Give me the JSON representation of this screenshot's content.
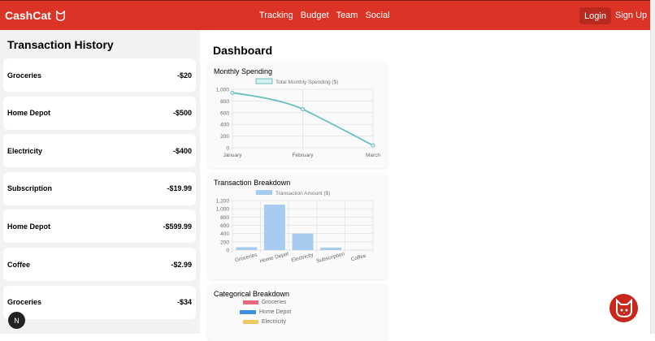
{
  "nav": {
    "brand": "CashCat",
    "links": [
      "Tracking",
      "Budget",
      "Team",
      "Social"
    ],
    "login": "Login",
    "signup": "Sign Up"
  },
  "history": {
    "title": "Transaction History",
    "items": [
      {
        "name": "Groceries",
        "amount": "-$20"
      },
      {
        "name": "Home Depot",
        "amount": "-$500"
      },
      {
        "name": "Electricity",
        "amount": "-$400"
      },
      {
        "name": "Subscription",
        "amount": "-$19.99"
      },
      {
        "name": "Home Depot",
        "amount": "-$599.99"
      },
      {
        "name": "Coffee",
        "amount": "-$2.99"
      },
      {
        "name": "Groceries",
        "amount": "-$34"
      }
    ]
  },
  "dashboard": {
    "title": "Dashboard",
    "monthly_title": "Monthly Spending",
    "breakdown_title": "Transaction Breakdown",
    "categorical_title": "Categorical Breakdown",
    "categorical_legend": [
      {
        "label": "Groceries",
        "color": "#e8677d"
      },
      {
        "label": "Home Depot",
        "color": "#3f8fde"
      },
      {
        "label": "Electricity",
        "color": "#f0c85f"
      }
    ]
  },
  "badge": "N",
  "chart_data": [
    {
      "type": "line",
      "legend": "Total Monthly Spending ($)",
      "categories": [
        "January",
        "February",
        "March"
      ],
      "values": [
        940,
        660,
        40
      ],
      "ylim": [
        0,
        1000
      ],
      "yticks": [
        "0",
        "200",
        "400",
        "600",
        "800",
        "1,000"
      ],
      "color": "#6cbfbf",
      "grid": true,
      "legend_position": "top"
    },
    {
      "type": "bar",
      "legend": "Transaction Amount ($)",
      "categories": [
        "Groceries",
        "Home Depot",
        "Electricity",
        "Subscription",
        "Coffee"
      ],
      "values": [
        70,
        1100,
        400,
        60,
        5
      ],
      "ylim": [
        0,
        1200
      ],
      "yticks": [
        "0",
        "200",
        "400",
        "600",
        "800",
        "1,000",
        "1,200"
      ],
      "color": "#a6cbef",
      "grid": true,
      "legend_position": "top"
    }
  ]
}
